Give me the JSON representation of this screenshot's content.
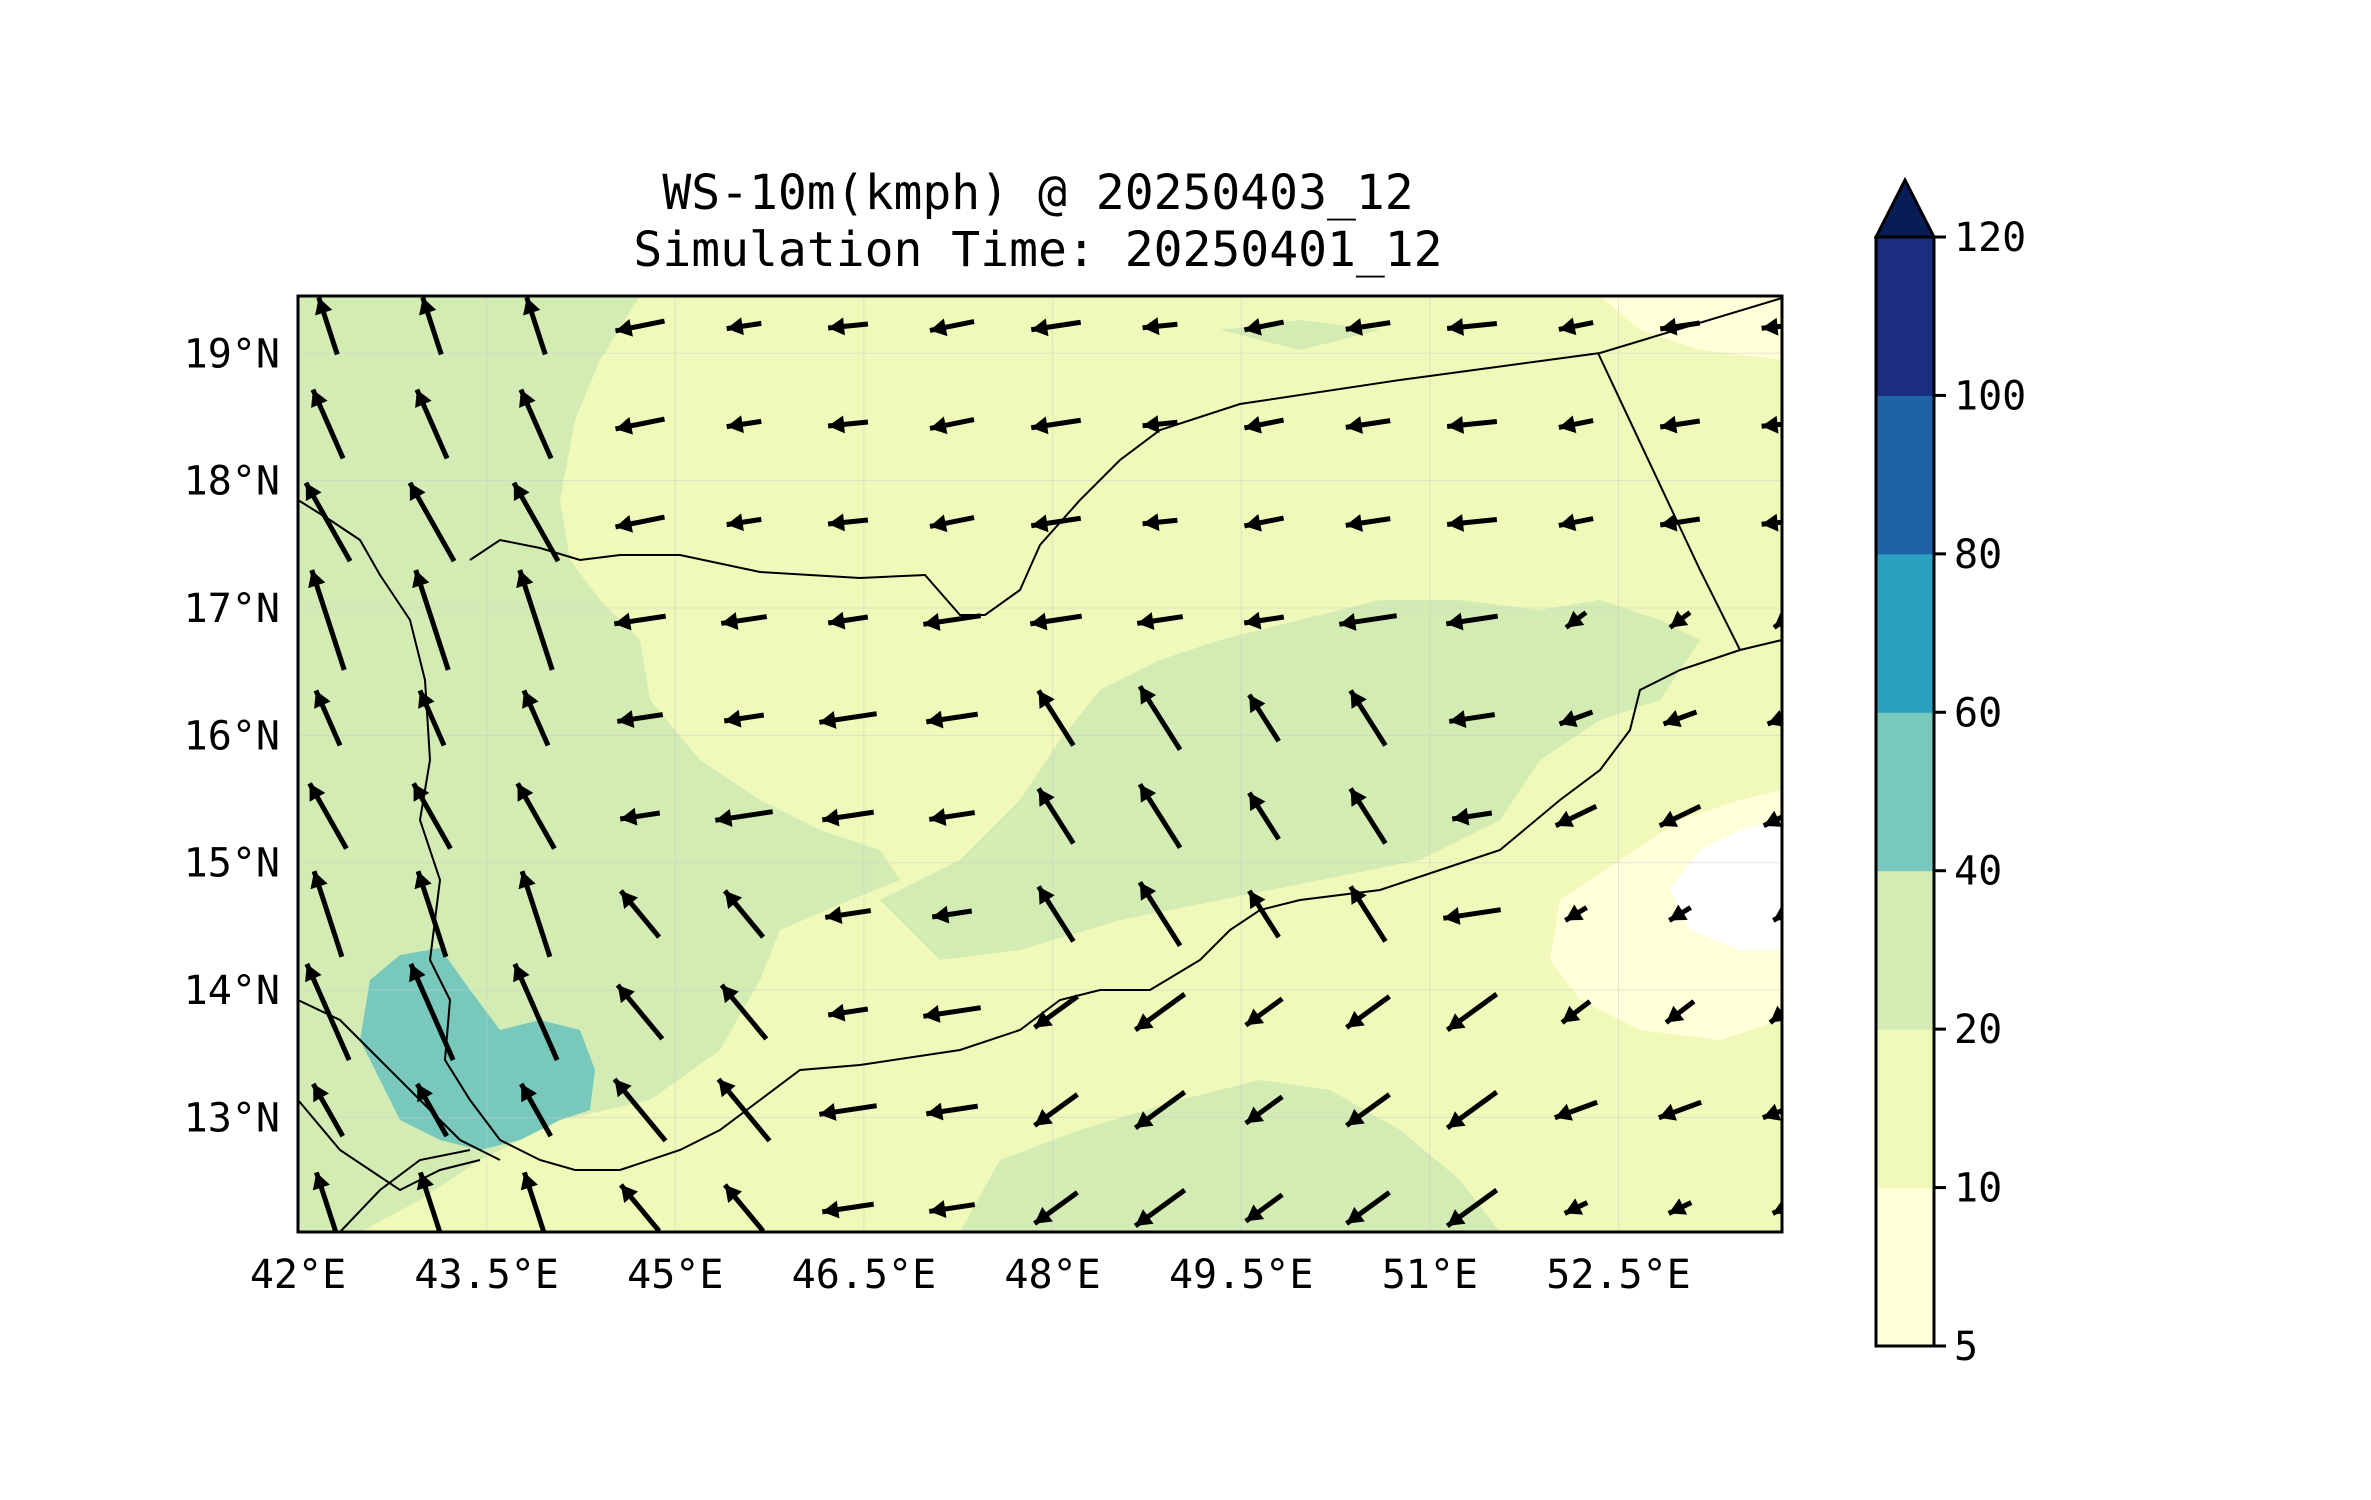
{
  "title": {
    "line1": "WS-10m(kmph) @ 20250403_12",
    "line2": "Simulation Time: 20250401_12"
  },
  "map": {
    "lon_range": [
      42.0,
      53.8
    ],
    "lat_range": [
      12.1,
      19.45
    ],
    "lon_ticks": [
      {
        "value": 42.0,
        "label": "42°E"
      },
      {
        "value": 43.5,
        "label": "43.5°E"
      },
      {
        "value": 45.0,
        "label": "45°E"
      },
      {
        "value": 46.5,
        "label": "46.5°E"
      },
      {
        "value": 48.0,
        "label": "48°E"
      },
      {
        "value": 49.5,
        "label": "49.5°E"
      },
      {
        "value": 51.0,
        "label": "51°E"
      },
      {
        "value": 52.5,
        "label": "52.5°E"
      }
    ],
    "lat_ticks": [
      {
        "value": 19,
        "label": "19°N"
      },
      {
        "value": 18,
        "label": "18°N"
      },
      {
        "value": 17,
        "label": "17°N"
      },
      {
        "value": 16,
        "label": "16°N"
      },
      {
        "value": 15,
        "label": "15°N"
      },
      {
        "value": 14,
        "label": "14°N"
      },
      {
        "value": 13,
        "label": "13°N"
      }
    ],
    "gridlines": true,
    "background_level_color": "#f0f9b9",
    "wind_arrow_color": "#000000",
    "border_color": "#000000"
  },
  "colorbar": {
    "levels": [
      5,
      10,
      20,
      40,
      60,
      80,
      100,
      120
    ],
    "labels": [
      "5",
      "10",
      "20",
      "40",
      "60",
      "80",
      "100",
      "120"
    ],
    "colors": [
      "#ffffd9",
      "#f0f9b9",
      "#d2ecb4",
      "#78c8bc",
      "#2ba1c2",
      "#2062a8",
      "#1b2d80"
    ],
    "extend_color": "#081d58",
    "extend": "max"
  }
}
